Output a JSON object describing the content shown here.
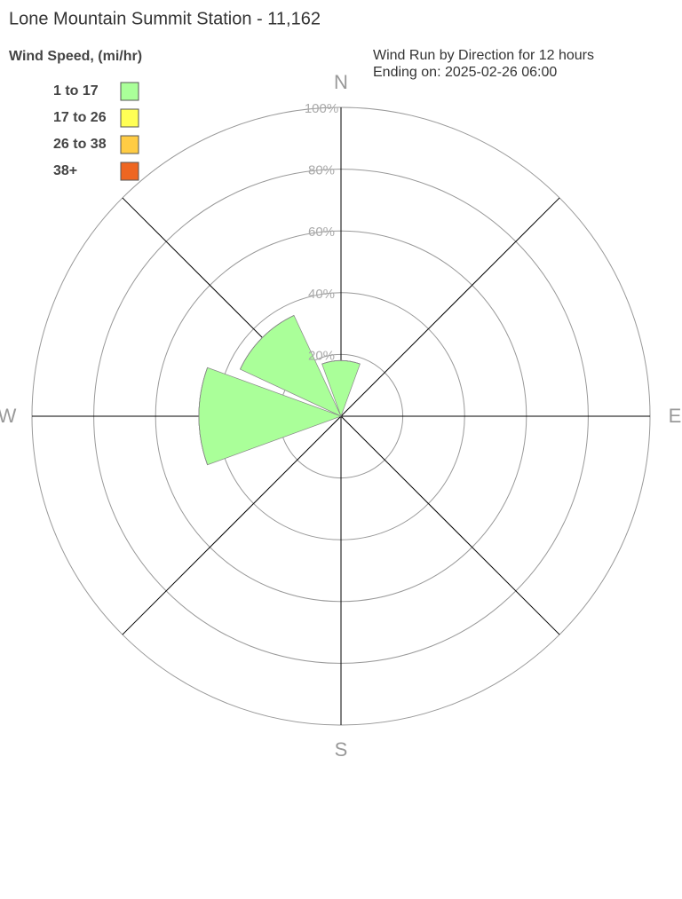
{
  "chart_data": {
    "type": "windrose",
    "title": "Lone Mountain Summit Station - 11,162",
    "legend_title": "Wind Speed, (mi/hr)",
    "subtitle": [
      "Wind Run by Direction for 12 hours",
      "Ending on: 2025-02-26 06:00"
    ],
    "categories": [
      "N",
      null,
      "E",
      null,
      "S",
      null,
      "W",
      null
    ],
    "series": [
      {
        "name": "1 to 17",
        "color": "#aaff99",
        "values": [
          18,
          0,
          0,
          0,
          0,
          0,
          46,
          36
        ]
      },
      {
        "name": "17 to 26",
        "color": "#ffff55",
        "values": [
          0,
          0,
          0,
          0,
          0,
          0,
          0,
          0
        ]
      },
      {
        "name": "26 to 38",
        "color": "#ffcc44",
        "values": [
          0,
          0,
          0,
          0,
          0,
          0,
          0,
          0
        ]
      },
      {
        "name": "38+",
        "color": "#ee6622",
        "values": [
          0,
          0,
          0,
          0,
          0,
          0,
          0,
          0
        ]
      }
    ],
    "rlim": [
      0,
      100
    ],
    "rticks": [
      {
        "value": 20,
        "label": "20%"
      },
      {
        "value": 40,
        "label": "40%"
      },
      {
        "value": 60,
        "label": "60%"
      },
      {
        "value": 80,
        "label": "80%"
      },
      {
        "value": 100,
        "label": "100%"
      }
    ],
    "grid": true
  }
}
